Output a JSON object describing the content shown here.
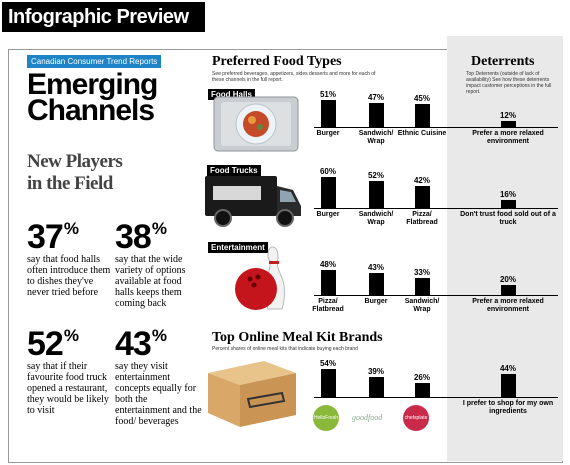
{
  "header": {
    "title": "Infographic Preview"
  },
  "source_label": "Canadian Consumer Trend Reports",
  "headline": [
    "Emerging",
    "Channels"
  ],
  "subhead": [
    "New Players",
    "in the Field"
  ],
  "stats": [
    {
      "value": "37",
      "suffix": "%",
      "text": "say that food halls often introduce them to dishes they've never tried before"
    },
    {
      "value": "38",
      "suffix": "%",
      "text": "say that the wide variety of options available at food halls keeps them coming back"
    },
    {
      "value": "52",
      "suffix": "%",
      "text": "say that if their favourite food truck opened a restaurant, they would be likely to visit"
    },
    {
      "value": "43",
      "suffix": "%",
      "text": "say they visit entertainment concepts equally for both the entertainment and the food/ beverages"
    }
  ],
  "preferred": {
    "title": "Preferred Food Types",
    "note": "See preferred beverages, appetizers, sides desserts and more for each of these channels in the full report."
  },
  "deterrents": {
    "title": "Deterrents",
    "note": "Top Deterrents (outside of lack of availability) See how these deterrents impact customer perceptions in the full report."
  },
  "meal_kits": {
    "title": "Top Online Meal Kit Brands",
    "note": "Percent shares of online meal kits that indicate buying each brand",
    "logos": [
      "Hello Fresh",
      "Goodfood",
      "Chefs Plate"
    ]
  },
  "chart_data": [
    {
      "type": "bar",
      "title": "Food Halls",
      "categories": [
        "Burger",
        "Sandwich/ Wrap",
        "Ethnic Cuisine"
      ],
      "values": [
        51,
        47,
        45
      ],
      "value_labels": [
        "51%",
        "47%",
        "45%"
      ]
    },
    {
      "type": "bar",
      "title": "Food Trucks",
      "categories": [
        "Burger",
        "Sandwich/ Wrap",
        "Pizza/ Flatbread"
      ],
      "values": [
        60,
        52,
        42
      ],
      "value_labels": [
        "60%",
        "52%",
        "42%"
      ]
    },
    {
      "type": "bar",
      "title": "Entertainment",
      "categories": [
        "Pizza/ Flatbread",
        "Burger",
        "Sandwich/ Wrap"
      ],
      "values": [
        48,
        43,
        33
      ],
      "value_labels": [
        "48%",
        "43%",
        "33%"
      ]
    },
    {
      "type": "bar",
      "title": "Top Online Meal Kit Brands",
      "categories": [
        "Hello Fresh",
        "Goodfood",
        "Chefs Plate"
      ],
      "values": [
        54,
        39,
        26
      ],
      "value_labels": [
        "54%",
        "39%",
        "26%"
      ]
    },
    {
      "type": "bar",
      "title": "Deterrents",
      "categories": [
        "Prefer a more relaxed environment",
        "Don't trust food sold out of a truck",
        "Prefer a more relaxed environment",
        "I prefer to shop for my own ingredients"
      ],
      "values": [
        12,
        16,
        20,
        44
      ],
      "value_labels": [
        "12%",
        "16%",
        "20%",
        "44%"
      ]
    }
  ]
}
